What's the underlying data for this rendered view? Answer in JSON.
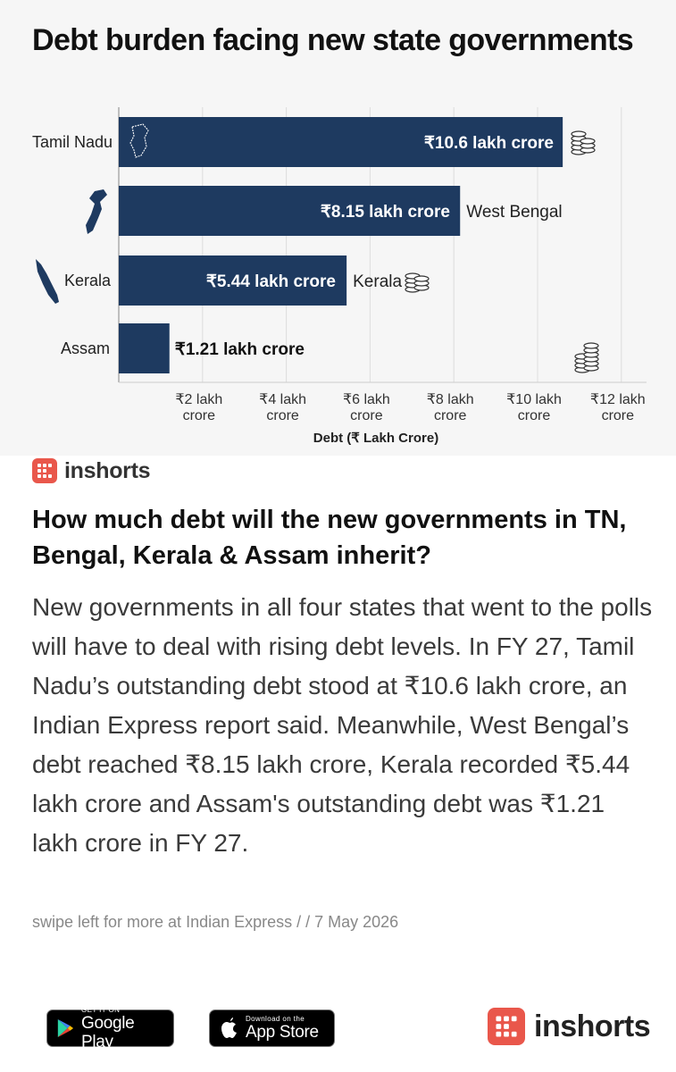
{
  "card": {
    "brand": "inshorts",
    "headline": "How much debt will the new governments in TN, Bengal, Kerala & Assam inherit?",
    "body": "New governments in all four states that went to the polls will have to deal with rising debt levels. In FY 27, Tamil Nadu’s outstanding debt stood at ₹10.6 lakh crore, an Indian Express report said. Meanwhile, West Bengal’s debt reached ₹8.15 lakh crore, Kerala recorded ₹5.44 lakh crore and Assam's outstanding debt was ₹1.21 lakh crore in FY 27.",
    "source": "swipe left for more at Indian Express /  / 7 May 2026"
  },
  "footer": {
    "google_play_small": "GET IT ON",
    "google_play_big": "Google Play",
    "app_store_small": "Download on the",
    "app_store_big": "App Store",
    "brand": "inshorts"
  },
  "colors": {
    "bar": "#1e3a60",
    "brand": "#e9574b",
    "axis": "#999999"
  },
  "chart_data": {
    "type": "bar",
    "orientation": "horizontal",
    "title": "Debt burden facing new state governments",
    "xlabel": "Debt (₹ Lakh Crore)",
    "ylabel": "",
    "categories": [
      "Tamil Nadu",
      "West Bengal",
      "Kerala",
      "Assam"
    ],
    "row_labels": [
      "Tamil Nadu",
      "",
      "Kerala",
      "Assam"
    ],
    "outside_labels": [
      "",
      "West Bengal",
      "Kerala",
      ""
    ],
    "values": [
      10.6,
      8.15,
      5.44,
      1.21
    ],
    "value_labels": [
      "₹10.6 lakh crore",
      "₹8.15 lakh crore",
      "₹5.44 lakh crore",
      "₹1.21 lakh crore"
    ],
    "xticks": [
      2,
      4,
      6,
      8,
      10,
      12
    ],
    "xtick_labels": [
      [
        "₹2 lakh",
        "crore"
      ],
      [
        "₹4 lakh",
        "crore"
      ],
      [
        "₹6 lakh",
        "crore"
      ],
      [
        "₹8 lakh",
        "crore"
      ],
      [
        "₹10 lakh",
        "crore"
      ],
      [
        "₹12 lakh",
        "crore"
      ]
    ],
    "xlim": [
      0,
      12.5
    ],
    "grid": true,
    "legend": "none"
  }
}
